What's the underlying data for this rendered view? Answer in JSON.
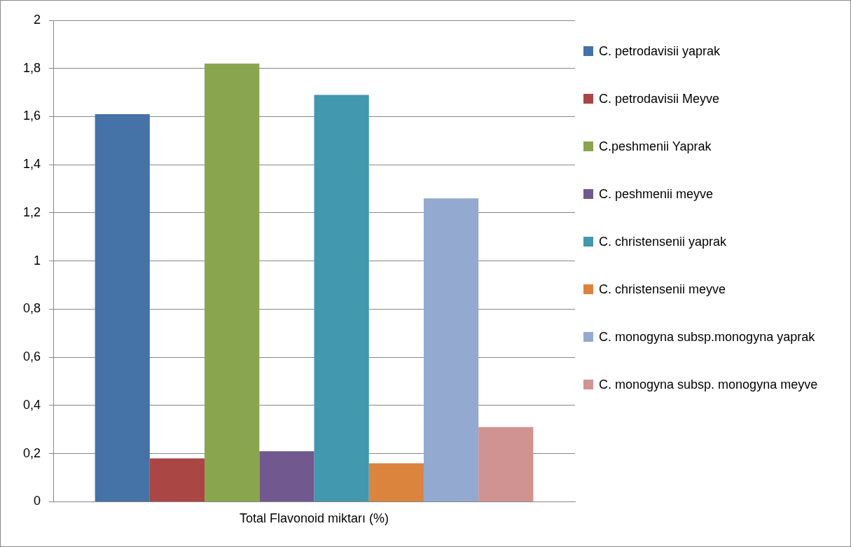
{
  "chart_data": {
    "type": "bar",
    "categories": [
      "Total Flavonoid miktarı (%)"
    ],
    "series": [
      {
        "name": "C. petrodavisii yaprak",
        "color": "#4572a7",
        "values": [
          1.61
        ]
      },
      {
        "name": "C. petrodavisii Meyve",
        "color": "#aa4643",
        "values": [
          0.18
        ]
      },
      {
        "name": "C.peshmenii Yaprak",
        "color": "#89a54e",
        "values": [
          1.82
        ]
      },
      {
        "name": "C. peshmenii meyve",
        "color": "#71588f",
        "values": [
          0.21
        ]
      },
      {
        "name": "C. christensenii yaprak",
        "color": "#4198af",
        "values": [
          1.69
        ]
      },
      {
        "name": "C. christensenii meyve",
        "color": "#db843d",
        "values": [
          0.16
        ]
      },
      {
        "name": "C. monogyna subsp.monogyna yaprak",
        "color": "#93a9cf",
        "values": [
          1.26
        ]
      },
      {
        "name": "C. monogyna subsp. monogyna meyve",
        "color": "#d19392",
        "values": [
          0.31
        ]
      }
    ],
    "ylim": [
      0,
      2
    ],
    "yticks": [
      0,
      {
        "value": 0.2,
        "label": "0,2"
      },
      {
        "value": 0.4,
        "label": "0,4"
      },
      {
        "value": 0.6,
        "label": "0,6"
      },
      {
        "value": 0.8,
        "label": "0,8"
      },
      1,
      {
        "value": 1.2,
        "label": "1,2"
      },
      {
        "value": 1.4,
        "label": "1,4"
      },
      {
        "value": 1.6,
        "label": "1,6"
      },
      {
        "value": 1.8,
        "label": "1,8"
      },
      2
    ],
    "grid": "y",
    "legend": "right"
  }
}
